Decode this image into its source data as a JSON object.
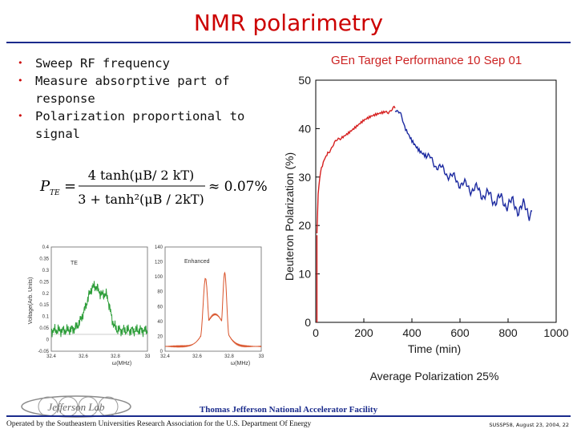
{
  "slide": {
    "title": "NMR polarimetry"
  },
  "bullets": [
    "Sweep RF frequency",
    "Measure absorptive part of response",
    "Polarization proportional to signal"
  ],
  "formula": {
    "lhs": "P",
    "lhs_sub": "TE",
    "num": "4 tanh(μB/ 2 kT)",
    "den": "3 + tanh²(μB / 2kT)",
    "result": "≈ 0.07%"
  },
  "te_plot": {
    "label": "TE",
    "ylabel": "Voltage(Arb. Units)",
    "xlabel": "ω(MHz)",
    "yticks": [
      "0.4",
      "0.35",
      "0.3",
      "0.25",
      "0.2",
      "0.15",
      "0.1",
      "0.05",
      "0",
      "-0.05"
    ],
    "xticks": [
      "32.4",
      "32.6",
      "32.8",
      "33"
    ],
    "color": "#2e9e3a"
  },
  "enhanced_plot": {
    "label": "Enhanced",
    "xlabel": "ω(MHz)",
    "yticks": [
      "140",
      "120",
      "100",
      "80",
      "60",
      "40",
      "20",
      "0"
    ],
    "xticks": [
      "32.4",
      "32.6",
      "32.8",
      "33"
    ],
    "color": "#d9532a"
  },
  "chart_data": {
    "type": "line",
    "title": "GEn Target Performance 10 Sep 01",
    "xlabel": "Time  (min)",
    "ylabel": "Deuteron Polarization  (%)",
    "xlim": [
      0,
      1000
    ],
    "ylim": [
      0,
      50
    ],
    "xticks": [
      0,
      200,
      400,
      600,
      800,
      1000
    ],
    "yticks": [
      0,
      10,
      20,
      30,
      40,
      50
    ],
    "caption": "Average Polarization 25%",
    "series": [
      {
        "color": "#d62020",
        "x": [
          5,
          10,
          20,
          35,
          50,
          70,
          90,
          110,
          140,
          170,
          200,
          230,
          260,
          290,
          310,
          330
        ],
        "y": [
          18,
          27,
          31,
          33.5,
          35,
          36.5,
          37.5,
          38.5,
          39.5,
          40.5,
          41.5,
          42.2,
          42.8,
          43.4,
          43.8,
          44.2
        ]
      },
      {
        "color": "#1c2aa0",
        "x": [
          330,
          350,
          370,
          400,
          430,
          460,
          500,
          540,
          580,
          620,
          660,
          700,
          740,
          780,
          820,
          860,
          900
        ],
        "y": [
          44.2,
          43,
          40.5,
          38,
          36,
          34.5,
          32.5,
          31,
          29.5,
          28.2,
          27.5,
          26.5,
          25.5,
          25,
          24.2,
          23.5,
          23
        ]
      }
    ]
  },
  "footer": {
    "lab": "Thomas Jefferson National Accelerator Facility",
    "operated": "Operated by the Southeastern Universities Research Association for the U.S. Department Of Energy",
    "conference": "SUSSP58, August 23, 2004, 22",
    "logo_text": "Jefferson Lab"
  },
  "colors": {
    "title": "#cc0000",
    "rule": "#1a2b8c"
  }
}
